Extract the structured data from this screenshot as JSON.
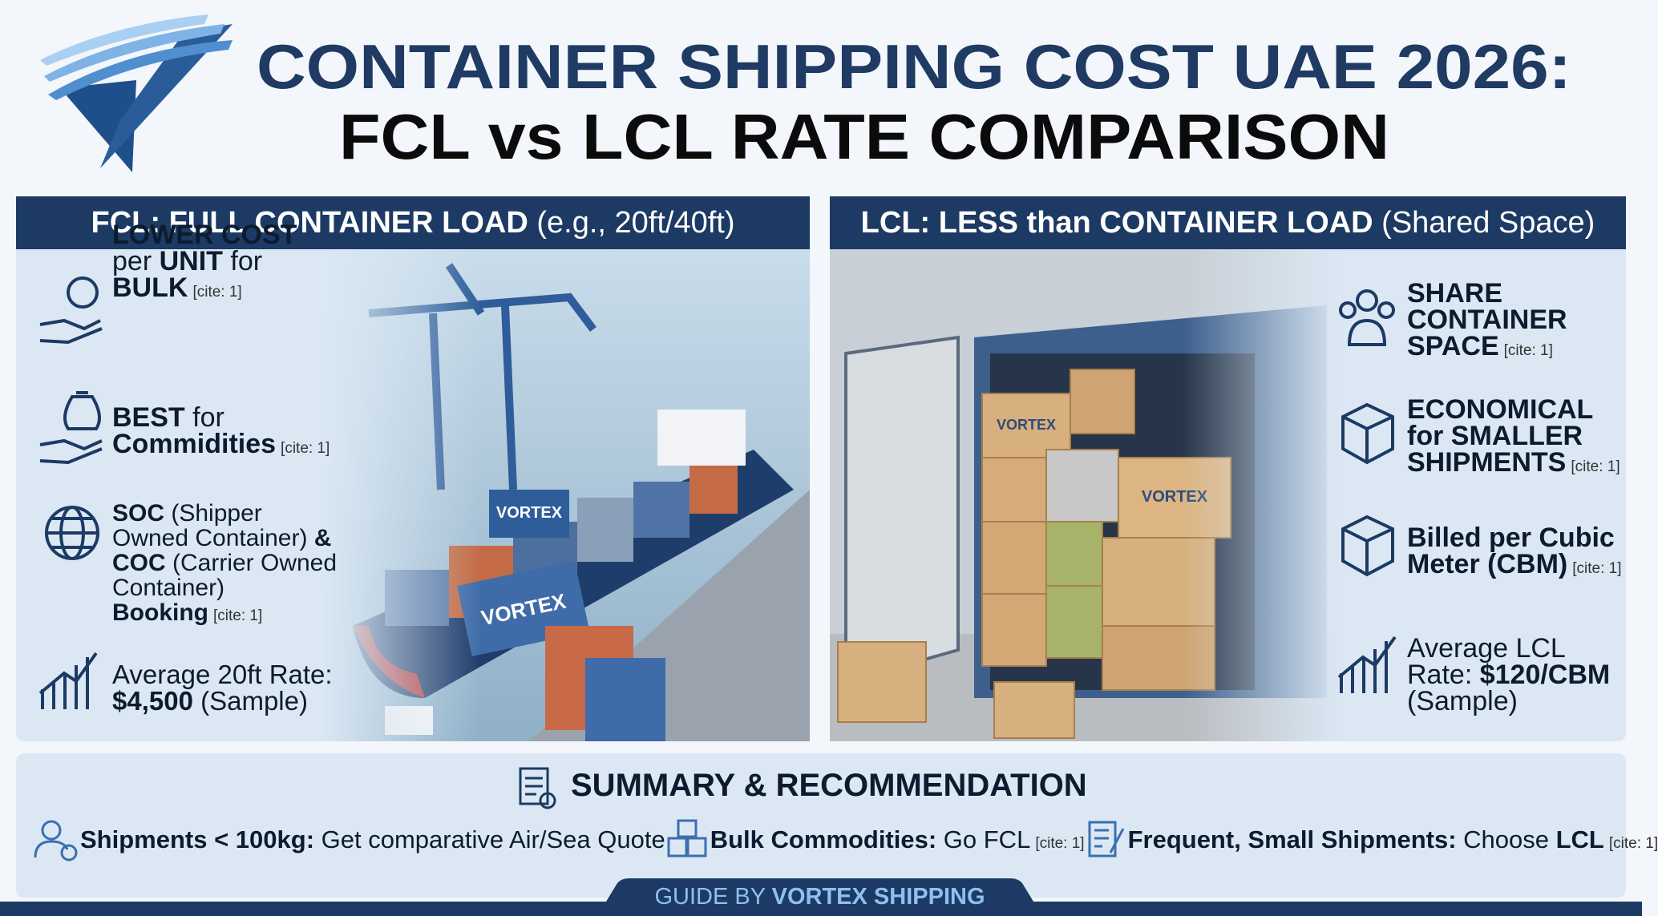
{
  "header": {
    "title_line1": "CONTAINER SHIPPING COST UAE 2026:",
    "title_line2": "FCL vs LCL RATE COMPARISON"
  },
  "fcl": {
    "heading": "FCL: FULL CONTAINER LOAD",
    "heading_note": "(e.g., 20ft/40ft)",
    "items": [
      {
        "parts": [
          {
            "text": "LOWER COST",
            "bold": true
          },
          {
            "text": " per ",
            "bold": false
          },
          {
            "text": "UNIT",
            "bold": true
          },
          {
            "text": " for ",
            "bold": false
          },
          {
            "text": "BULK",
            "bold": true
          }
        ],
        "cite": "[cite: 1]"
      },
      {
        "parts": [
          {
            "text": "BEST",
            "bold": true
          },
          {
            "text": " for ",
            "bold": false
          },
          {
            "text": "Commidities",
            "bold": true
          }
        ],
        "cite": "[cite: 1]"
      },
      {
        "parts": [
          {
            "text": "SOC",
            "bold": true
          },
          {
            "text": " (Shipper Owned Container) ",
            "bold": false
          },
          {
            "text": "& COC",
            "bold": true
          },
          {
            "text": " (Carrier Owned Container) ",
            "bold": false
          },
          {
            "text": "Booking",
            "bold": true
          }
        ],
        "cite": "[cite: 1]"
      },
      {
        "parts": [
          {
            "text": "Average 20ft Rate: ",
            "bold": false
          },
          {
            "text": "$4,500",
            "bold": true
          },
          {
            "text": " (Sample)",
            "bold": false
          }
        ]
      }
    ]
  },
  "lcl": {
    "heading": "LCL: LESS than CONTAINER LOAD",
    "heading_note": "(Shared Space)",
    "items": [
      {
        "parts": [
          {
            "text": "SHARE CONTAINER SPACE",
            "bold": true
          }
        ],
        "cite": "[cite: 1]"
      },
      {
        "parts": [
          {
            "text": "ECONOMICAL for SMALLER SHIPMENTS",
            "bold": true
          }
        ],
        "cite": "[cite: 1]"
      },
      {
        "parts": [
          {
            "text": "Billed per Cubic Meter (CBM)",
            "bold": true
          }
        ],
        "cite": "[cite: 1]"
      },
      {
        "parts": [
          {
            "text": "Average LCL Rate: ",
            "bold": false
          },
          {
            "text": "$120/CBM",
            "bold": true
          },
          {
            "text": " (Sample)",
            "bold": false
          }
        ]
      }
    ]
  },
  "brand_label": "VORTEX",
  "summary": {
    "title": "SUMMARY & RECOMMENDATION",
    "items": [
      {
        "parts": [
          {
            "text": "Shipments < 100kg:",
            "bold": true
          },
          {
            "text": " Get comparative Air/Sea Quote",
            "bold": false
          }
        ]
      },
      {
        "parts": [
          {
            "text": "Bulk Commodities:",
            "bold": true
          },
          {
            "text": " Go FCL",
            "bold": false
          }
        ],
        "cite": "[cite: 1]"
      },
      {
        "parts": [
          {
            "text": "Frequent, Small Shipments:",
            "bold": true
          },
          {
            "text": " Choose ",
            "bold": false
          },
          {
            "text": "LCL",
            "bold": true
          }
        ],
        "cite": "[cite: 1]"
      }
    ]
  },
  "footer": {
    "parts": [
      {
        "text": "GUIDE BY ",
        "bold": false
      },
      {
        "text": "VORTEX SHIPPING",
        "bold": true
      }
    ]
  }
}
